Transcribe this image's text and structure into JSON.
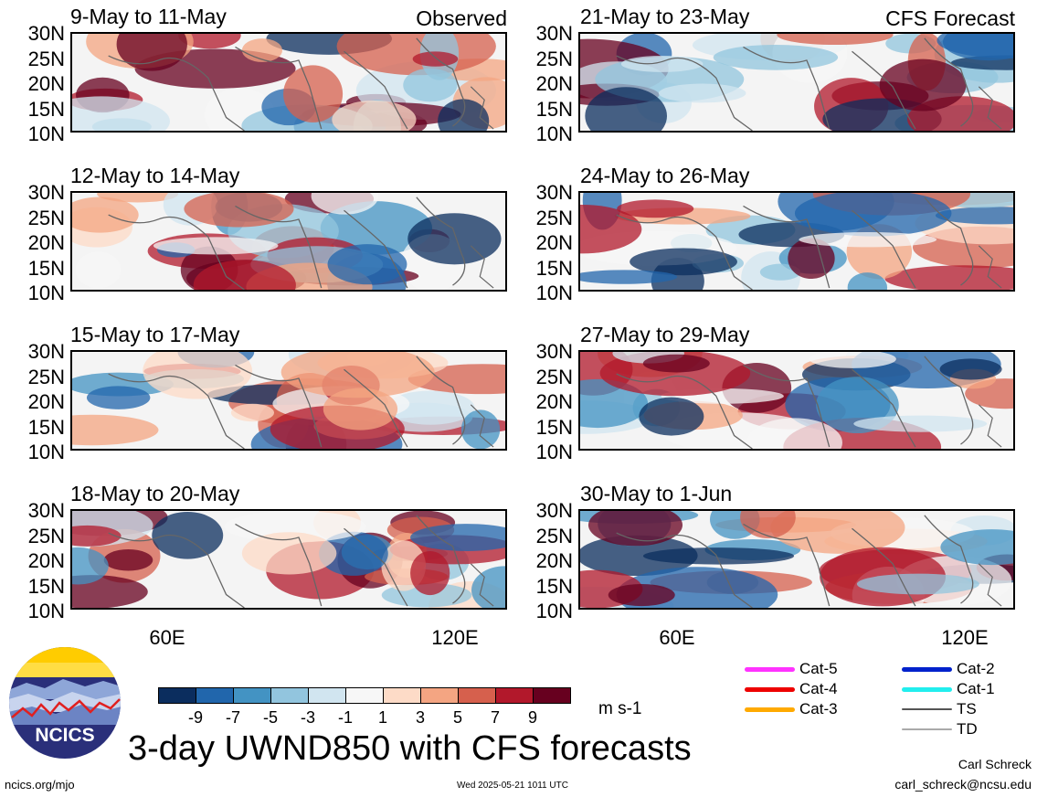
{
  "panels": [
    {
      "title": "9-May to 11-May",
      "label": "Observed"
    },
    {
      "title": "21-May to 23-May",
      "label": "CFS Forecast"
    },
    {
      "title": "12-May to 14-May",
      "label": ""
    },
    {
      "title": "24-May to 26-May",
      "label": ""
    },
    {
      "title": "15-May to 17-May",
      "label": ""
    },
    {
      "title": "27-May to 29-May",
      "label": ""
    },
    {
      "title": "18-May to 20-May",
      "label": ""
    },
    {
      "title": "30-May to 1-Jun",
      "label": ""
    }
  ],
  "y_ticks": [
    "30N",
    "25N",
    "20N",
    "15N",
    "10N"
  ],
  "x_ticks": [
    "60E",
    "120E"
  ],
  "colorbar": {
    "colors": [
      "#0b2d5e",
      "#2166ac",
      "#4393c3",
      "#92c5de",
      "#d1e5f0",
      "#f7f7f7",
      "#fddbc7",
      "#f4a582",
      "#d6604d",
      "#b2182b",
      "#67001f"
    ],
    "labels": [
      "-9",
      "-7",
      "-5",
      "-3",
      "-1",
      "1",
      "3",
      "5",
      "7",
      "9"
    ],
    "units": "m s-1"
  },
  "legend": [
    {
      "label": "Cat-5",
      "color": "#ff33ff"
    },
    {
      "label": "Cat-2",
      "color": "#0022cc"
    },
    {
      "label": "Cat-4",
      "color": "#ee0000"
    },
    {
      "label": "Cat-1",
      "color": "#22eeee"
    },
    {
      "label": "Cat-3",
      "color": "#ffaa00"
    },
    {
      "label": "TS",
      "color": "#555555"
    },
    {
      "label": "",
      "color": ""
    },
    {
      "label": "TD",
      "color": "#aaaaaa"
    }
  ],
  "title": "3-day UWND850 with CFS forecasts",
  "logo": {
    "text": "NCICS"
  },
  "footer": {
    "site": "ncics.org/mjo",
    "timestamp": "Wed 2025-05-21 1011 UTC",
    "author": "Carl Schreck",
    "email": "carl_schreck@ncsu.edu"
  }
}
